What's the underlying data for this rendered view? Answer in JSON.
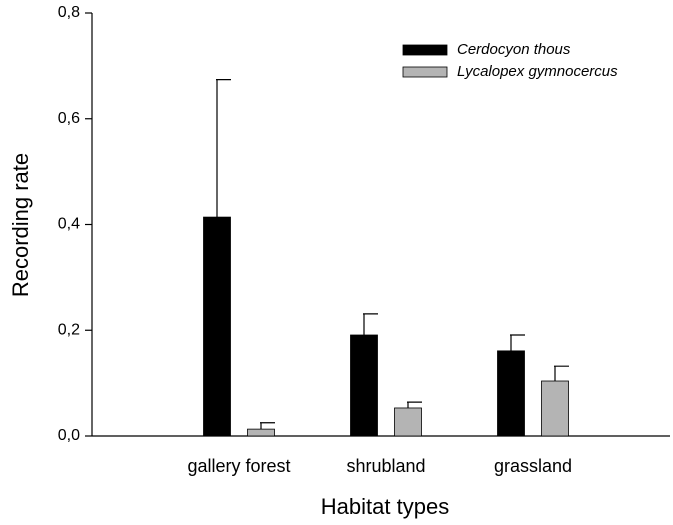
{
  "chart_data": {
    "type": "bar",
    "xlabel": "Habitat types",
    "ylabel": "Recording rate",
    "categories": [
      "gallery forest",
      "shrubland",
      "grassland"
    ],
    "series": [
      {
        "name": "Cerdocyon thous",
        "color": "#000000",
        "values": [
          0.414,
          0.191,
          0.161
        ],
        "errors": [
          0.26,
          0.04,
          0.03
        ]
      },
      {
        "name": "Lycalopex gymnocercus",
        "color": "#b4b4b4",
        "values": [
          0.013,
          0.053,
          0.104
        ],
        "errors": [
          0.012,
          0.011,
          0.028
        ]
      }
    ],
    "ylim": [
      0,
      0.8
    ],
    "yticks": [
      {
        "value": 0,
        "label": "0,0"
      },
      {
        "value": 0.2,
        "label": "0,2"
      },
      {
        "value": 0.4,
        "label": "0,4"
      },
      {
        "value": 0.6,
        "label": "0,6"
      },
      {
        "value": 0.8,
        "label": "0,8"
      }
    ],
    "legend": "upper right"
  }
}
